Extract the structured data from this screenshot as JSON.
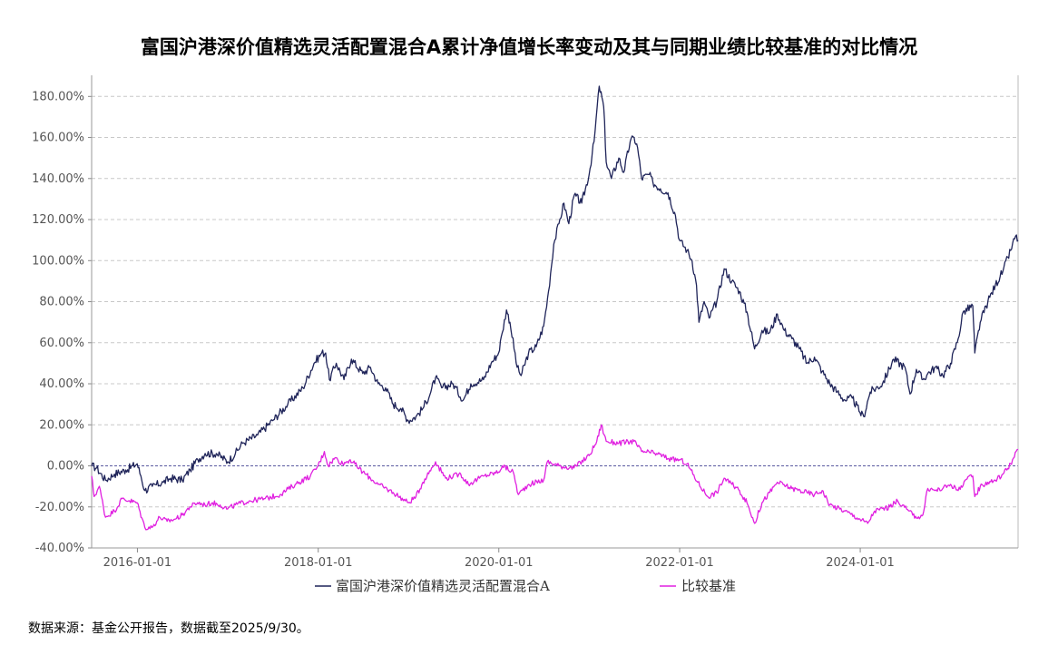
{
  "chart_data": {
    "type": "line",
    "title": "富国沪港深价值精选灵活配置混合A累计净值增长率变动及其与同期业绩比较基准的对比情况",
    "y_tick_labels": [
      "180.00%",
      "160.00%",
      "140.00%",
      "120.00%",
      "100.00%",
      "80.00%",
      "60.00%",
      "40.00%",
      "20.00%",
      "0.00%",
      "-20.00%",
      "-40.00%"
    ],
    "x_tick_labels": [
      "2016-01-01",
      "2018-01-01",
      "2020-01-01",
      "2022-01-01",
      "2024-01-01"
    ],
    "ylim": [
      -40,
      185
    ],
    "x_range": [
      "2015-06-30",
      "2025-09-30"
    ],
    "grid": true,
    "legend_position": "bottom",
    "series": [
      {
        "name": "富国沪港深价值精选灵活配置混合A",
        "color": "#1f2459",
        "points": [
          [
            "2015-06-30",
            0
          ],
          [
            "2015-07-20",
            -1
          ],
          [
            "2015-08-25",
            -7
          ],
          [
            "2015-09-30",
            -4
          ],
          [
            "2015-11-15",
            -2
          ],
          [
            "2015-12-31",
            1
          ],
          [
            "2016-01-15",
            -5
          ],
          [
            "2016-01-31",
            -12
          ],
          [
            "2016-03-01",
            -10
          ],
          [
            "2016-04-15",
            -8
          ],
          [
            "2016-05-15",
            -6
          ],
          [
            "2016-06-30",
            -7
          ],
          [
            "2016-08-01",
            -2
          ],
          [
            "2016-09-01",
            3
          ],
          [
            "2016-10-01",
            6
          ],
          [
            "2016-11-15",
            6
          ],
          [
            "2016-12-31",
            2
          ],
          [
            "2017-01-31",
            6
          ],
          [
            "2017-03-01",
            11
          ],
          [
            "2017-05-01",
            15
          ],
          [
            "2017-06-30",
            22
          ],
          [
            "2017-08-31",
            30
          ],
          [
            "2017-10-31",
            38
          ],
          [
            "2017-12-15",
            50
          ],
          [
            "2018-01-15",
            55
          ],
          [
            "2018-01-31",
            55
          ],
          [
            "2018-02-15",
            42
          ],
          [
            "2018-03-15",
            50
          ],
          [
            "2018-04-15",
            42
          ],
          [
            "2018-05-15",
            52
          ],
          [
            "2018-06-30",
            45
          ],
          [
            "2018-07-31",
            48
          ],
          [
            "2018-08-31",
            40
          ],
          [
            "2018-09-30",
            38
          ],
          [
            "2018-10-31",
            30
          ],
          [
            "2018-12-01",
            28
          ],
          [
            "2018-12-31",
            22
          ],
          [
            "2019-01-31",
            24
          ],
          [
            "2019-02-28",
            28
          ],
          [
            "2019-04-01",
            36
          ],
          [
            "2019-04-20",
            43
          ],
          [
            "2019-05-15",
            38
          ],
          [
            "2019-06-30",
            40
          ],
          [
            "2019-08-10",
            32
          ],
          [
            "2019-09-10",
            40
          ],
          [
            "2019-10-31",
            42
          ],
          [
            "2019-12-01",
            50
          ],
          [
            "2019-12-31",
            55
          ],
          [
            "2020-01-15",
            65
          ],
          [
            "2020-02-01",
            76
          ],
          [
            "2020-02-15",
            70
          ],
          [
            "2020-03-15",
            48
          ],
          [
            "2020-03-31",
            44
          ],
          [
            "2020-04-30",
            55
          ],
          [
            "2020-05-31",
            58
          ],
          [
            "2020-06-30",
            68
          ],
          [
            "2020-07-20",
            85
          ],
          [
            "2020-08-10",
            108
          ],
          [
            "2020-08-31",
            118
          ],
          [
            "2020-09-20",
            128
          ],
          [
            "2020-10-10",
            118
          ],
          [
            "2020-11-01",
            132
          ],
          [
            "2020-12-01",
            128
          ],
          [
            "2020-12-31",
            142
          ],
          [
            "2021-01-20",
            158
          ],
          [
            "2021-02-10",
            185
          ],
          [
            "2021-02-28",
            175
          ],
          [
            "2021-03-10",
            148
          ],
          [
            "2021-03-31",
            140
          ],
          [
            "2021-04-30",
            150
          ],
          [
            "2021-05-20",
            143
          ],
          [
            "2021-06-15",
            158
          ],
          [
            "2021-07-01",
            160
          ],
          [
            "2021-07-15",
            155
          ],
          [
            "2021-07-31",
            140
          ],
          [
            "2021-08-31",
            142
          ],
          [
            "2021-09-15",
            138
          ],
          [
            "2021-10-15",
            135
          ],
          [
            "2021-11-15",
            133
          ],
          [
            "2021-12-15",
            122
          ],
          [
            "2021-12-31",
            110
          ],
          [
            "2022-01-31",
            105
          ],
          [
            "2022-02-20",
            100
          ],
          [
            "2022-03-10",
            88
          ],
          [
            "2022-03-20",
            70
          ],
          [
            "2022-04-10",
            80
          ],
          [
            "2022-04-30",
            72
          ],
          [
            "2022-05-31",
            80
          ],
          [
            "2022-06-30",
            96
          ],
          [
            "2022-07-31",
            90
          ],
          [
            "2022-08-31",
            85
          ],
          [
            "2022-09-30",
            75
          ],
          [
            "2022-10-31",
            57
          ],
          [
            "2022-11-30",
            66
          ],
          [
            "2022-12-31",
            65
          ],
          [
            "2023-01-31",
            74
          ],
          [
            "2023-02-28",
            66
          ],
          [
            "2023-03-31",
            62
          ],
          [
            "2023-04-30",
            57
          ],
          [
            "2023-05-31",
            50
          ],
          [
            "2023-06-30",
            53
          ],
          [
            "2023-07-31",
            46
          ],
          [
            "2023-08-31",
            40
          ],
          [
            "2023-09-30",
            36
          ],
          [
            "2023-10-31",
            32
          ],
          [
            "2023-11-30",
            33
          ],
          [
            "2023-12-31",
            26
          ],
          [
            "2024-01-15",
            24
          ],
          [
            "2024-02-10",
            36
          ],
          [
            "2024-03-31",
            40
          ],
          [
            "2024-05-15",
            52
          ],
          [
            "2024-06-30",
            48
          ],
          [
            "2024-07-20",
            35
          ],
          [
            "2024-08-15",
            47
          ],
          [
            "2024-09-10",
            42
          ],
          [
            "2024-09-30",
            45
          ],
          [
            "2024-10-31",
            48
          ],
          [
            "2024-11-30",
            44
          ],
          [
            "2024-12-31",
            50
          ],
          [
            "2025-01-31",
            62
          ],
          [
            "2025-02-20",
            75
          ],
          [
            "2025-03-31",
            78
          ],
          [
            "2025-04-08",
            55
          ],
          [
            "2025-04-30",
            70
          ],
          [
            "2025-05-31",
            80
          ],
          [
            "2025-06-30",
            88
          ],
          [
            "2025-07-31",
            95
          ],
          [
            "2025-08-31",
            105
          ],
          [
            "2025-09-20",
            112
          ],
          [
            "2025-09-30",
            110
          ]
        ]
      },
      {
        "name": "比较基准",
        "color": "#e020e0",
        "points": [
          [
            "2015-06-30",
            -5
          ],
          [
            "2015-07-10",
            -15
          ],
          [
            "2015-07-31",
            -10
          ],
          [
            "2015-08-25",
            -25
          ],
          [
            "2015-09-30",
            -22
          ],
          [
            "2015-10-31",
            -16
          ],
          [
            "2015-11-30",
            -17
          ],
          [
            "2015-12-31",
            -18
          ],
          [
            "2016-01-31",
            -30
          ],
          [
            "2016-02-29",
            -30
          ],
          [
            "2016-03-31",
            -25
          ],
          [
            "2016-04-30",
            -27
          ],
          [
            "2016-05-31",
            -26
          ],
          [
            "2016-06-30",
            -24
          ],
          [
            "2016-07-31",
            -20
          ],
          [
            "2016-08-31",
            -18
          ],
          [
            "2016-09-30",
            -19
          ],
          [
            "2016-10-31",
            -18
          ],
          [
            "2016-11-30",
            -19
          ],
          [
            "2016-12-31",
            -21
          ],
          [
            "2017-01-31",
            -19
          ],
          [
            "2017-03-31",
            -17
          ],
          [
            "2017-05-31",
            -16
          ],
          [
            "2017-07-31",
            -14
          ],
          [
            "2017-09-30",
            -9
          ],
          [
            "2017-11-30",
            -5
          ],
          [
            "2017-12-31",
            0
          ],
          [
            "2018-01-26",
            7
          ],
          [
            "2018-02-10",
            0
          ],
          [
            "2018-03-10",
            4
          ],
          [
            "2018-04-10",
            1
          ],
          [
            "2018-05-10",
            3
          ],
          [
            "2018-06-30",
            -3
          ],
          [
            "2018-08-31",
            -9
          ],
          [
            "2018-10-31",
            -13
          ],
          [
            "2018-12-31",
            -18
          ],
          [
            "2019-01-31",
            -15
          ],
          [
            "2019-02-28",
            -8
          ],
          [
            "2019-04-20",
            2
          ],
          [
            "2019-05-31",
            -6
          ],
          [
            "2019-07-31",
            -4
          ],
          [
            "2019-08-31",
            -9
          ],
          [
            "2019-10-31",
            -5
          ],
          [
            "2019-12-31",
            -3
          ],
          [
            "2020-01-15",
            0
          ],
          [
            "2020-02-28",
            -3
          ],
          [
            "2020-03-20",
            -14
          ],
          [
            "2020-04-30",
            -9
          ],
          [
            "2020-06-30",
            -7
          ],
          [
            "2020-07-15",
            2
          ],
          [
            "2020-08-31",
            0
          ],
          [
            "2020-10-31",
            -1
          ],
          [
            "2020-12-31",
            5
          ],
          [
            "2021-01-31",
            12
          ],
          [
            "2021-02-18",
            20
          ],
          [
            "2021-03-10",
            12
          ],
          [
            "2021-04-30",
            11
          ],
          [
            "2021-06-30",
            12
          ],
          [
            "2021-07-31",
            7
          ],
          [
            "2021-09-30",
            6
          ],
          [
            "2021-11-30",
            3
          ],
          [
            "2021-12-31",
            3
          ],
          [
            "2022-01-31",
            1
          ],
          [
            "2022-03-15",
            -8
          ],
          [
            "2022-04-25",
            -15
          ],
          [
            "2022-05-31",
            -13
          ],
          [
            "2022-06-30",
            -6
          ],
          [
            "2022-07-31",
            -9
          ],
          [
            "2022-08-31",
            -12
          ],
          [
            "2022-09-30",
            -18
          ],
          [
            "2022-10-31",
            -28
          ],
          [
            "2022-11-30",
            -18
          ],
          [
            "2022-12-31",
            -13
          ],
          [
            "2023-01-31",
            -8
          ],
          [
            "2023-03-31",
            -11
          ],
          [
            "2023-05-31",
            -13
          ],
          [
            "2023-06-30",
            -14
          ],
          [
            "2023-07-31",
            -12
          ],
          [
            "2023-08-31",
            -19
          ],
          [
            "2023-10-31",
            -22
          ],
          [
            "2023-12-31",
            -26
          ],
          [
            "2024-01-31",
            -28
          ],
          [
            "2024-02-28",
            -22
          ],
          [
            "2024-04-30",
            -20
          ],
          [
            "2024-05-31",
            -17
          ],
          [
            "2024-07-31",
            -24
          ],
          [
            "2024-08-31",
            -25
          ],
          [
            "2024-09-10",
            -24
          ],
          [
            "2024-09-30",
            -11
          ],
          [
            "2024-10-31",
            -12
          ],
          [
            "2024-11-30",
            -11
          ],
          [
            "2024-12-31",
            -9
          ],
          [
            "2025-01-31",
            -12
          ],
          [
            "2025-02-28",
            -7
          ],
          [
            "2025-03-31",
            -5
          ],
          [
            "2025-04-08",
            -15
          ],
          [
            "2025-04-30",
            -10
          ],
          [
            "2025-05-31",
            -8
          ],
          [
            "2025-06-30",
            -7
          ],
          [
            "2025-07-31",
            -4
          ],
          [
            "2025-08-31",
            1
          ],
          [
            "2025-09-30",
            8
          ]
        ]
      }
    ]
  },
  "footer": {
    "source_note": "数据来源：基金公开报告，数据截至2025/9/30。"
  }
}
